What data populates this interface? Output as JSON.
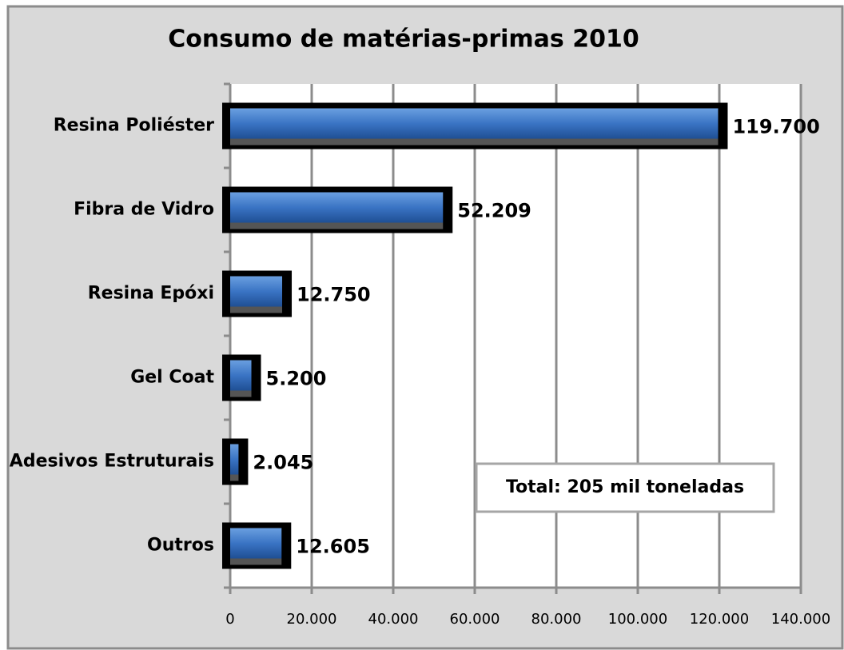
{
  "chart_data": {
    "type": "bar",
    "orientation": "horizontal",
    "title": "Consumo de matérias-primas 2010",
    "categories": [
      "Resina Poliéster",
      "Fibra de Vidro",
      "Resina Epóxi",
      "Gel Coat",
      "Adesivos Estruturais",
      "Outros"
    ],
    "values": [
      119700,
      52209,
      12750,
      5200,
      2045,
      12605
    ],
    "value_labels": [
      "119.700",
      "52.209",
      "12.750",
      "5.200",
      "2.045",
      "12.605"
    ],
    "color": "#3a74c4",
    "xlim": [
      0,
      140000
    ],
    "xticks": [
      0,
      {
        "value": 20000,
        "label": "20.000"
      },
      {
        "value": 40000,
        "label": "40.000"
      },
      {
        "value": 60000,
        "label": "60.000"
      },
      {
        "value": 80000,
        "label": "80.000"
      },
      {
        "value": 100000,
        "label": "100.000"
      },
      {
        "value": 120000,
        "label": "120.000"
      },
      {
        "value": 140000,
        "label": "140.000"
      }
    ],
    "grid": true,
    "annotation": "Total: 205 mil toneladas"
  }
}
